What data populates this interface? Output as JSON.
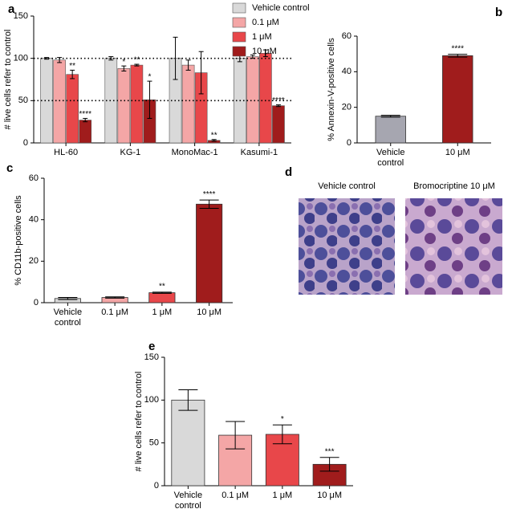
{
  "chart_data": [
    {
      "type": "bar",
      "panel": "a",
      "ylabel": "# live cells refer to control",
      "categories": [
        "HL-60",
        "KG-1",
        "MonoMac-1",
        "Kasumi-1"
      ],
      "series": [
        {
          "name": "Vehicle control",
          "color": "#d9d9d9",
          "values": [
            100,
            100,
            100,
            100
          ],
          "errors": [
            1,
            2,
            25,
            4
          ],
          "annotations": [
            null,
            null,
            null,
            null
          ]
        },
        {
          "name": "0.1 μM",
          "color": "#f4a6a6",
          "values": [
            98,
            88,
            92,
            102
          ],
          "errors": [
            3,
            3,
            6,
            2
          ],
          "annotations": [
            null,
            "*",
            null,
            null
          ]
        },
        {
          "name": "1 μM",
          "color": "#e8474a",
          "values": [
            81,
            92,
            83,
            106
          ],
          "errors": [
            5,
            1,
            25,
            4
          ],
          "annotations": [
            "**",
            "**",
            null,
            null
          ]
        },
        {
          "name": "10 μM",
          "color": "#a01c1c",
          "values": [
            27,
            51,
            3,
            44
          ],
          "errors": [
            2,
            22,
            1,
            1
          ],
          "annotations": [
            "****",
            "*",
            "**",
            "****"
          ]
        }
      ],
      "reference_lines": [
        100,
        50
      ],
      "ylim": [
        0,
        150
      ],
      "yticks": [
        0,
        50,
        100,
        150
      ]
    },
    {
      "type": "bar",
      "panel": "b",
      "ylabel": "% Annexin-V-positive cells",
      "categories": [
        "Vehicle control",
        "10 μM"
      ],
      "values": [
        15,
        49
      ],
      "errors": [
        0.5,
        0.8
      ],
      "colors": [
        "#a6a6b0",
        "#a01c1c"
      ],
      "annotations": [
        null,
        "****"
      ],
      "ylim": [
        0,
        60
      ],
      "yticks": [
        0,
        20,
        40,
        60
      ]
    },
    {
      "type": "bar",
      "panel": "c",
      "ylabel": "% CD11b-positive cells",
      "categories": [
        "Vehicle control",
        "0.1 μM",
        "1 μM",
        "10 μM"
      ],
      "values": [
        2,
        2.5,
        4.8,
        47.5
      ],
      "errors": [
        0.5,
        0.3,
        0.3,
        2
      ],
      "colors": [
        "#d9d9d9",
        "#f4a6a6",
        "#e8474a",
        "#a01c1c"
      ],
      "annotations": [
        null,
        null,
        "**",
        "****"
      ],
      "ylim": [
        0,
        60
      ],
      "yticks": [
        0,
        20,
        40,
        60
      ]
    },
    {
      "type": "bar",
      "panel": "e",
      "ylabel": "# live cells refer to control",
      "categories": [
        "Vehicle control",
        "0.1 μM",
        "1 μM",
        "10 μM"
      ],
      "values": [
        100,
        59,
        60,
        25
      ],
      "errors": [
        12,
        16,
        11,
        8
      ],
      "colors": [
        "#d9d9d9",
        "#f4a6a6",
        "#e8474a",
        "#a01c1c"
      ],
      "annotations": [
        null,
        null,
        "*",
        "***"
      ],
      "ylim": [
        0,
        150
      ],
      "yticks": [
        0,
        50,
        100,
        150
      ]
    }
  ],
  "panel_d": {
    "panel": "d",
    "captions": [
      "Vehicle control",
      "Bromocriptine 10 μM"
    ]
  }
}
